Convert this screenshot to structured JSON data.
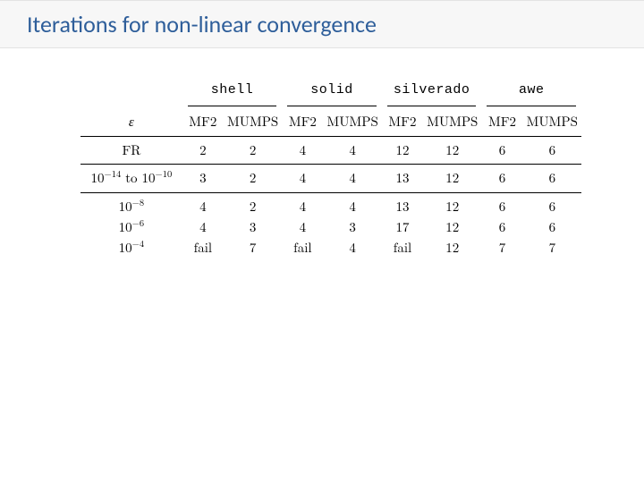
{
  "title": "Iterations for non-linear convergence",
  "colors": {
    "title_text": "#2e5e9a",
    "band_bg": "#f7f7f7",
    "band_border": "#e3e3e3",
    "rule": "#000000",
    "text": "#000000",
    "background": "#ffffff"
  },
  "typography": {
    "title_font": "Calibri",
    "title_size_pt": 20,
    "body_font": "Latin Modern Roman (serif)",
    "body_size_pt": 11,
    "mono_font": "Courier / Latin Modern Mono"
  },
  "table": {
    "type": "table",
    "eps_header": "ε",
    "groups": [
      "shell",
      "solid",
      "silverado",
      "awe"
    ],
    "subcols": [
      "MF2",
      "MUMPS"
    ],
    "row_labels": {
      "r0": "FR",
      "r1": "10⁻¹⁴ to 10⁻¹⁰",
      "r2": "10⁻⁸",
      "r3": "10⁻⁶",
      "r4": "10⁻⁴"
    },
    "rows": [
      {
        "key": "r0",
        "vals": [
          "2",
          "2",
          "4",
          "4",
          "12",
          "12",
          "6",
          "6"
        ]
      },
      {
        "key": "r1",
        "vals": [
          "3",
          "2",
          "4",
          "4",
          "13",
          "12",
          "6",
          "6"
        ]
      },
      {
        "key": "r2",
        "vals": [
          "4",
          "2",
          "4",
          "4",
          "13",
          "12",
          "6",
          "6"
        ]
      },
      {
        "key": "r3",
        "vals": [
          "4",
          "3",
          "4",
          "3",
          "17",
          "12",
          "6",
          "6"
        ]
      },
      {
        "key": "r4",
        "vals": [
          "fail",
          "7",
          "fail",
          "4",
          "fail",
          "12",
          "7",
          "7"
        ]
      }
    ]
  }
}
